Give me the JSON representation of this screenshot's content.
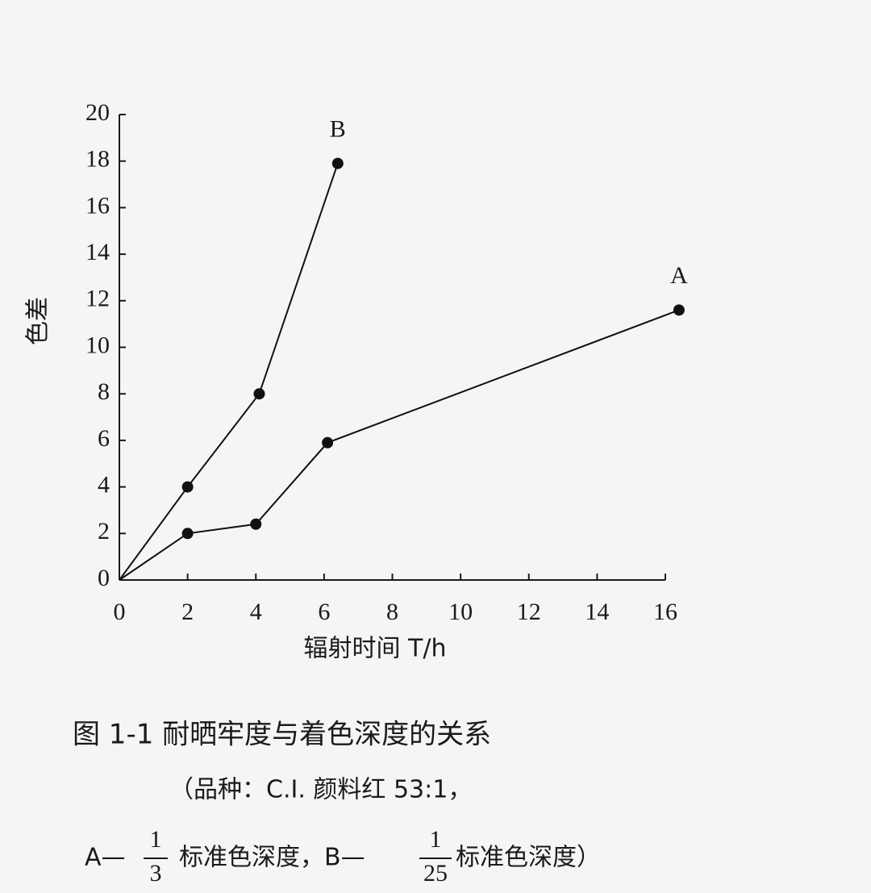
{
  "chart_data": {
    "type": "line",
    "x_label": "辐射时间 T/h",
    "y_label": "色差",
    "xlim": [
      0,
      16
    ],
    "ylim": [
      0,
      20
    ],
    "xticks": [
      0,
      2,
      4,
      6,
      8,
      10,
      12,
      14,
      16
    ],
    "yticks": [
      0,
      2,
      4,
      6,
      8,
      10,
      12,
      14,
      16,
      18,
      20
    ],
    "series": [
      {
        "name": "A",
        "color": "#111111",
        "x": [
          0,
          2,
          4,
          6.1,
          16.4
        ],
        "values": [
          0,
          2.0,
          2.4,
          5.9,
          11.6
        ]
      },
      {
        "name": "B",
        "color": "#111111",
        "x": [
          0,
          2,
          4.1,
          6.4
        ],
        "values": [
          0,
          4.0,
          8.0,
          17.9
        ]
      }
    ],
    "caption": {
      "title": "图 1-1 耐晒牢度与着色深度的关系",
      "note_line1": "（品种：C.I. 颜料红 53:1，",
      "note_line2": {
        "a_prefix": "A—",
        "a_num": "1",
        "a_den": "3",
        "a_text": "标准色深度，B—",
        "b_num": "1",
        "b_den": "25",
        "b_text": "标准色深度）"
      }
    }
  }
}
